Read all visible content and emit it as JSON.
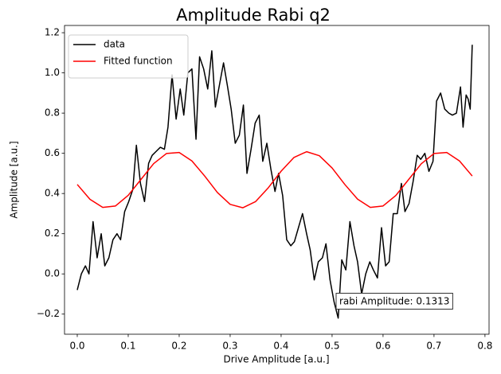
{
  "chart_data": {
    "type": "line",
    "title": "Amplitude Rabi q2",
    "x_label": "Drive Amplitude [a.u.]",
    "y_label": "Amplitude [a.u.]",
    "annotation": "rabi Amplitude: 0.1313",
    "legend": "upper left",
    "grid": false,
    "xlim": [
      -0.025,
      0.808
    ],
    "ylim": [
      -0.3,
      1.236
    ],
    "xticks": [
      {
        "value": 0,
        "label": "0.0"
      },
      0.1,
      0.2,
      0.3,
      0.4,
      0.5,
      0.6,
      0.7,
      0.8
    ],
    "yticks": [
      {
        "value": -0.2,
        "label": "−0.2"
      },
      {
        "value": 0,
        "label": "0.0"
      },
      0.2,
      0.4,
      0.6,
      0.8,
      {
        "value": 1,
        "label": "1.0"
      },
      1.2
    ],
    "series": [
      {
        "name": "data",
        "color": "#000000",
        "x": [
          0,
          0.008,
          0.016,
          0.023,
          0.031,
          0.039,
          0.047,
          0.054,
          0.062,
          0.07,
          0.078,
          0.085,
          0.093,
          0.101,
          0.109,
          0.116,
          0.124,
          0.132,
          0.14,
          0.147,
          0.155,
          0.163,
          0.171,
          0.178,
          0.186,
          0.194,
          0.202,
          0.209,
          0.217,
          0.225,
          0.233,
          0.24,
          0.248,
          0.256,
          0.264,
          0.271,
          0.279,
          0.287,
          0.295,
          0.302,
          0.31,
          0.318,
          0.326,
          0.333,
          0.341,
          0.349,
          0.357,
          0.364,
          0.372,
          0.38,
          0.388,
          0.395,
          0.403,
          0.411,
          0.419,
          0.426,
          0.434,
          0.442,
          0.45,
          0.457,
          0.465,
          0.473,
          0.481,
          0.488,
          0.496,
          0.504,
          0.512,
          0.519,
          0.527,
          0.535,
          0.543,
          0.55,
          0.558,
          0.566,
          0.574,
          0.581,
          0.589,
          0.597,
          0.605,
          0.612,
          0.62,
          0.628,
          0.636,
          0.643,
          0.651,
          0.659,
          0.667,
          0.674,
          0.682,
          0.69,
          0.698,
          0.705,
          0.713,
          0.721,
          0.729,
          0.736,
          0.744,
          0.752,
          0.757,
          0.763,
          0.767,
          0.771,
          0.775
        ],
        "values": [
          -0.08,
          0,
          0.04,
          0,
          0.26,
          0.08,
          0.2,
          0.04,
          0.08,
          0.17,
          0.2,
          0.17,
          0.31,
          0.36,
          0.42,
          0.64,
          0.45,
          0.36,
          0.55,
          0.59,
          0.61,
          0.63,
          0.62,
          0.73,
          0.99,
          0.77,
          0.92,
          0.79,
          1,
          1.02,
          0.67,
          1.08,
          1.02,
          0.92,
          1.11,
          0.83,
          0.94,
          1.05,
          0.93,
          0.82,
          0.65,
          0.69,
          0.84,
          0.5,
          0.62,
          0.75,
          0.79,
          0.56,
          0.65,
          0.52,
          0.41,
          0.5,
          0.39,
          0.17,
          0.14,
          0.16,
          0.23,
          0.3,
          0.2,
          0.12,
          -0.03,
          0.06,
          0.08,
          0.15,
          -0.03,
          -0.14,
          -0.22,
          0.07,
          0.02,
          0.26,
          0.14,
          0.06,
          -0.1,
          0,
          0.06,
          0.02,
          -0.02,
          0.23,
          0.04,
          0.06,
          0.3,
          0.3,
          0.45,
          0.31,
          0.35,
          0.46,
          0.59,
          0.57,
          0.6,
          0.51,
          0.56,
          0.86,
          0.9,
          0.82,
          0.8,
          0.79,
          0.8,
          0.93,
          0.73,
          0.89,
          0.87,
          0.82,
          1.14
        ]
      },
      {
        "name": "Fitted function",
        "color": "#ff0000",
        "x": [
          0,
          0.025,
          0.05,
          0.075,
          0.1,
          0.125,
          0.15,
          0.175,
          0.2,
          0.225,
          0.25,
          0.275,
          0.3,
          0.325,
          0.35,
          0.375,
          0.4,
          0.425,
          0.45,
          0.475,
          0.5,
          0.525,
          0.55,
          0.575,
          0.6,
          0.625,
          0.65,
          0.675,
          0.7,
          0.725,
          0.75,
          0.775
        ],
        "values": [
          0.445,
          0.371,
          0.331,
          0.338,
          0.391,
          0.47,
          0.549,
          0.599,
          0.604,
          0.562,
          0.487,
          0.405,
          0.346,
          0.329,
          0.36,
          0.429,
          0.511,
          0.579,
          0.608,
          0.588,
          0.527,
          0.445,
          0.372,
          0.331,
          0.338,
          0.39,
          0.469,
          0.548,
          0.599,
          0.604,
          0.562,
          0.487
        ]
      }
    ]
  }
}
